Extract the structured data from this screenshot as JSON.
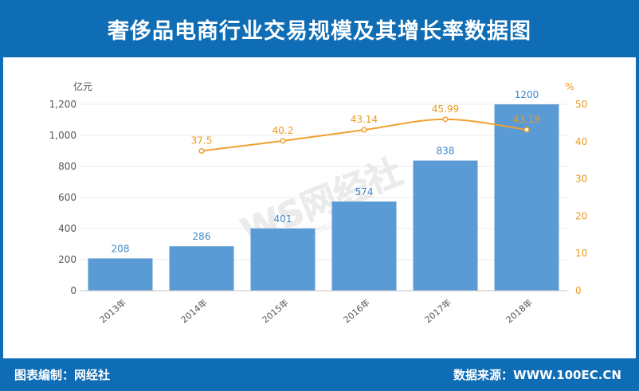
{
  "header": {
    "title": "奢侈品电商行业交易规模及其增长率数据图"
  },
  "footer": {
    "left": "图表编制：网经社",
    "right": "数据来源：WWW.100EC.CN"
  },
  "watermark": {
    "brand": "WS网经社",
    "url": "WWW.100EC.CN"
  },
  "colors": {
    "header_bg": "#0e6db5",
    "bar": "#5b9bd5",
    "line": "#f0a030",
    "rate_text": "#ec9a1c"
  },
  "chart_data": {
    "type": "bar+line",
    "categories": [
      "2013年",
      "2014年",
      "2015年",
      "2016年",
      "2017年",
      "2018年"
    ],
    "series": [
      {
        "type": "bar",
        "axis": "left",
        "values": [
          208,
          286,
          401,
          574,
          838,
          1200
        ]
      },
      {
        "type": "line",
        "axis": "right",
        "values": [
          null,
          37.5,
          40.2,
          43.14,
          45.99,
          43.19
        ]
      }
    ],
    "ylabel": "亿元",
    "y2label": "%",
    "ylim": [
      0,
      1200
    ],
    "y2lim": [
      0,
      50
    ],
    "yticks": [
      "0",
      "200",
      "400",
      "600",
      "800",
      "1,000",
      "1,200"
    ],
    "y2ticks": [
      "0",
      "10",
      "20",
      "30",
      "40",
      "50"
    ],
    "bar_labels": [
      "208",
      "286",
      "401",
      "574",
      "838",
      "1200"
    ],
    "line_labels": [
      "",
      "37.5",
      "40.2",
      "43.14",
      "45.99",
      "43.19"
    ],
    "grid": true,
    "legend": "none"
  }
}
